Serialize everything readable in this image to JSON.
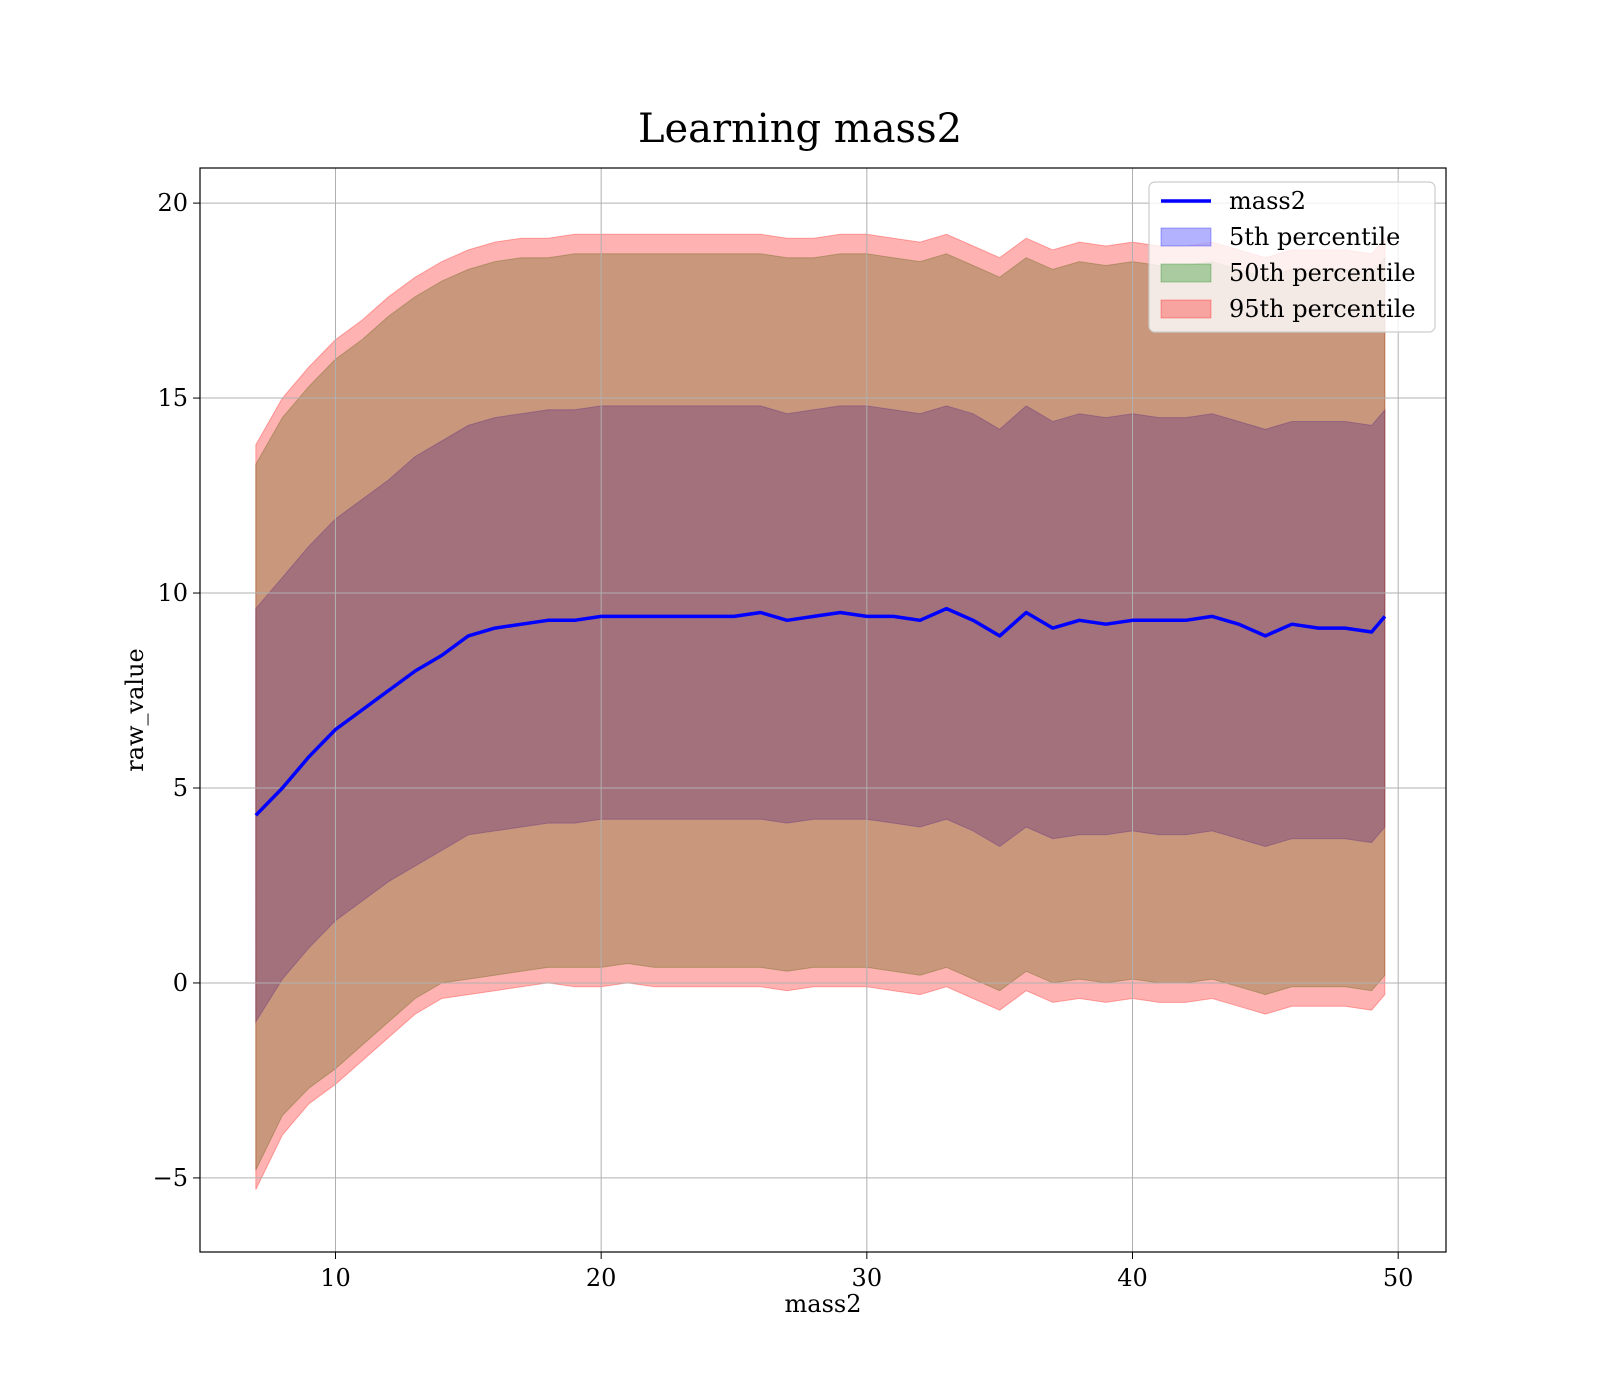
{
  "chart_data": {
    "type": "line",
    "title": "Learning mass2",
    "xlabel": "mass2",
    "ylabel": "raw_value",
    "xlim": [
      4.9,
      51.8
    ],
    "ylim": [
      -6.9,
      20.9
    ],
    "x_ticks": [
      10,
      20,
      30,
      40,
      50
    ],
    "x_tick_labels": [
      "10",
      "20",
      "30",
      "40",
      "50"
    ],
    "y_ticks": [
      -5,
      0,
      5,
      10,
      15,
      20
    ],
    "y_tick_labels": [
      "−5",
      "0",
      "5",
      "10",
      "15",
      "20"
    ],
    "grid": true,
    "legend_position": "top-right",
    "legend": [
      {
        "label": "mass2",
        "kind": "line",
        "color": "#0000ff"
      },
      {
        "label": "5th percentile",
        "kind": "band",
        "color": "#0000ff"
      },
      {
        "label": "50th percentile",
        "kind": "band",
        "color": "#008000"
      },
      {
        "label": "95th percentile",
        "kind": "band",
        "color": "#ff0000"
      }
    ],
    "x": [
      7.0,
      8.0,
      9.0,
      10.0,
      11.0,
      12.0,
      13.0,
      14.0,
      15.0,
      16.0,
      17.0,
      18.0,
      19.0,
      20.0,
      21.0,
      22.0,
      23.0,
      24.0,
      25.0,
      26.0,
      27.0,
      28.0,
      29.0,
      30.0,
      31.0,
      32.0,
      33.0,
      34.0,
      35.0,
      36.0,
      37.0,
      38.0,
      39.0,
      40.0,
      41.0,
      42.0,
      43.0,
      44.0,
      45.0,
      46.0,
      47.0,
      48.0,
      49.0,
      49.5
    ],
    "series": [
      {
        "name": "mass2",
        "kind": "line",
        "color": "#0000ff",
        "values": [
          4.3,
          5.0,
          5.8,
          6.5,
          7.0,
          7.5,
          8.0,
          8.4,
          8.9,
          9.1,
          9.2,
          9.3,
          9.3,
          9.4,
          9.4,
          9.4,
          9.4,
          9.4,
          9.4,
          9.5,
          9.3,
          9.4,
          9.5,
          9.4,
          9.4,
          9.3,
          9.6,
          9.3,
          8.9,
          9.5,
          9.1,
          9.3,
          9.2,
          9.3,
          9.3,
          9.3,
          9.4,
          9.2,
          8.9,
          9.2,
          9.1,
          9.1,
          9.0,
          9.4
        ]
      },
      {
        "name": "5th percentile",
        "kind": "band",
        "color": "#0000ff",
        "lower": [
          -1.0,
          0.1,
          0.9,
          1.6,
          2.1,
          2.6,
          3.0,
          3.4,
          3.8,
          3.9,
          4.0,
          4.1,
          4.1,
          4.2,
          4.2,
          4.2,
          4.2,
          4.2,
          4.2,
          4.2,
          4.1,
          4.2,
          4.2,
          4.2,
          4.1,
          4.0,
          4.2,
          3.9,
          3.5,
          4.0,
          3.7,
          3.8,
          3.8,
          3.9,
          3.8,
          3.8,
          3.9,
          3.7,
          3.5,
          3.7,
          3.7,
          3.7,
          3.6,
          4.0
        ],
        "upper": [
          9.6,
          10.4,
          11.2,
          11.9,
          12.4,
          12.9,
          13.5,
          13.9,
          14.3,
          14.5,
          14.6,
          14.7,
          14.7,
          14.8,
          14.8,
          14.8,
          14.8,
          14.8,
          14.8,
          14.8,
          14.6,
          14.7,
          14.8,
          14.8,
          14.7,
          14.6,
          14.8,
          14.6,
          14.2,
          14.8,
          14.4,
          14.6,
          14.5,
          14.6,
          14.5,
          14.5,
          14.6,
          14.4,
          14.2,
          14.4,
          14.4,
          14.4,
          14.3,
          14.7
        ]
      },
      {
        "name": "50th percentile",
        "kind": "band",
        "color": "#008000",
        "lower": [
          -4.8,
          -3.4,
          -2.7,
          -2.2,
          -1.6,
          -1.0,
          -0.4,
          0.0,
          0.1,
          0.2,
          0.3,
          0.4,
          0.4,
          0.4,
          0.5,
          0.4,
          0.4,
          0.4,
          0.4,
          0.4,
          0.3,
          0.4,
          0.4,
          0.4,
          0.3,
          0.2,
          0.4,
          0.1,
          -0.2,
          0.3,
          0.0,
          0.1,
          0.0,
          0.1,
          0.0,
          0.0,
          0.1,
          -0.1,
          -0.3,
          -0.1,
          -0.1,
          -0.1,
          -0.2,
          0.2
        ],
        "upper": [
          13.3,
          14.5,
          15.3,
          16.0,
          16.5,
          17.1,
          17.6,
          18.0,
          18.3,
          18.5,
          18.6,
          18.6,
          18.7,
          18.7,
          18.7,
          18.7,
          18.7,
          18.7,
          18.7,
          18.7,
          18.6,
          18.6,
          18.7,
          18.7,
          18.6,
          18.5,
          18.7,
          18.4,
          18.1,
          18.6,
          18.3,
          18.5,
          18.4,
          18.5,
          18.4,
          18.4,
          18.5,
          18.3,
          18.1,
          18.3,
          18.3,
          18.3,
          18.2,
          18.6
        ]
      },
      {
        "name": "95th percentile",
        "kind": "band",
        "color": "#ff0000",
        "lower": [
          -5.3,
          -3.9,
          -3.1,
          -2.6,
          -2.0,
          -1.4,
          -0.8,
          -0.4,
          -0.3,
          -0.2,
          -0.1,
          0.0,
          -0.1,
          -0.1,
          0.0,
          -0.1,
          -0.1,
          -0.1,
          -0.1,
          -0.1,
          -0.2,
          -0.1,
          -0.1,
          -0.1,
          -0.2,
          -0.3,
          -0.1,
          -0.4,
          -0.7,
          -0.2,
          -0.5,
          -0.4,
          -0.5,
          -0.4,
          -0.5,
          -0.5,
          -0.4,
          -0.6,
          -0.8,
          -0.6,
          -0.6,
          -0.6,
          -0.7,
          -0.3
        ],
        "upper": [
          13.8,
          15.0,
          15.8,
          16.5,
          17.0,
          17.6,
          18.1,
          18.5,
          18.8,
          19.0,
          19.1,
          19.1,
          19.2,
          19.2,
          19.2,
          19.2,
          19.2,
          19.2,
          19.2,
          19.2,
          19.1,
          19.1,
          19.2,
          19.2,
          19.1,
          19.0,
          19.2,
          18.9,
          18.6,
          19.1,
          18.8,
          19.0,
          18.9,
          19.0,
          18.9,
          18.9,
          19.0,
          18.8,
          18.6,
          18.8,
          18.8,
          18.8,
          18.7,
          19.1
        ]
      }
    ]
  }
}
